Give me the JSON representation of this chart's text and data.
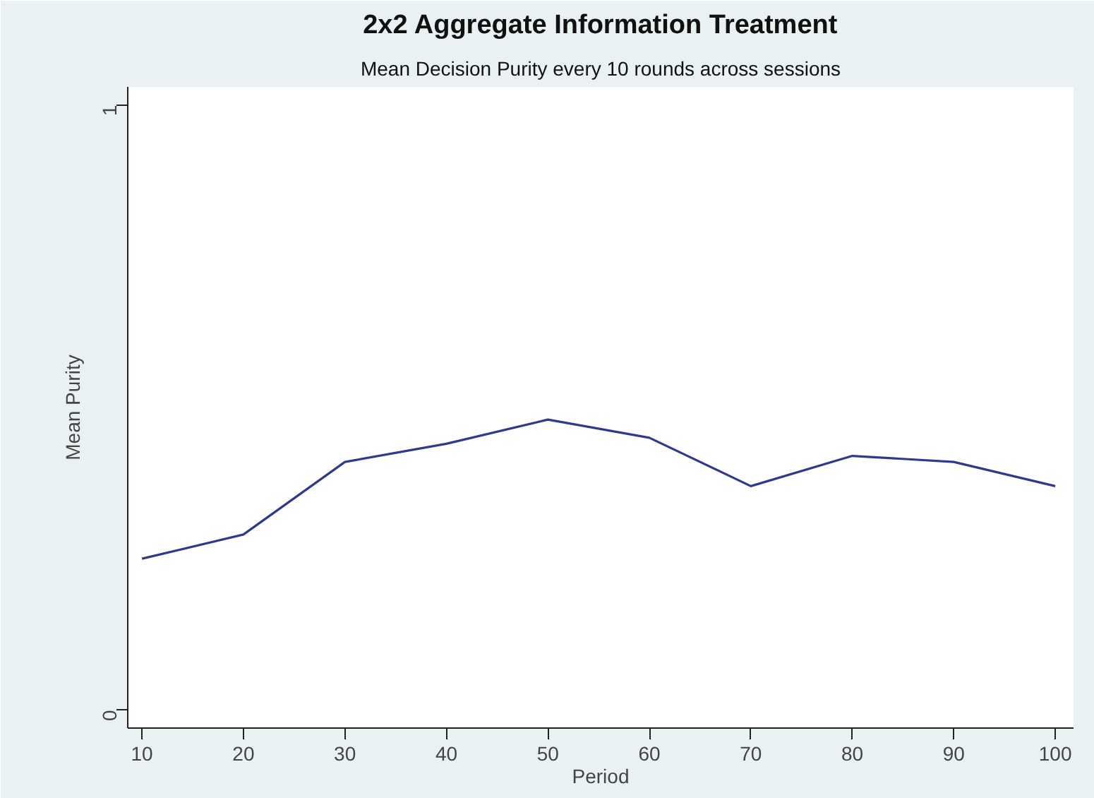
{
  "chart_data": {
    "type": "line",
    "title": "2x2 Aggregate Information Treatment",
    "subtitle": "Mean Decision Purity every 10 rounds across sessions",
    "xlabel": "Period",
    "ylabel": "Mean Purity",
    "x": [
      10,
      20,
      30,
      40,
      50,
      60,
      70,
      80,
      90,
      100
    ],
    "series": [
      {
        "color": "#2e3a8c",
        "values": [
          0.25,
          0.29,
          0.41,
          0.44,
          0.48,
          0.45,
          0.37,
          0.42,
          0.41,
          0.37
        ]
      }
    ],
    "xlim": [
      8.6,
      101.8
    ],
    "ylim": [
      -0.03,
      1.03
    ],
    "xticks": [
      10,
      20,
      30,
      40,
      50,
      60,
      70,
      80,
      90,
      100
    ],
    "yticks": [
      0,
      1
    ],
    "grid": false,
    "marker": "none",
    "line_style": "solid"
  }
}
